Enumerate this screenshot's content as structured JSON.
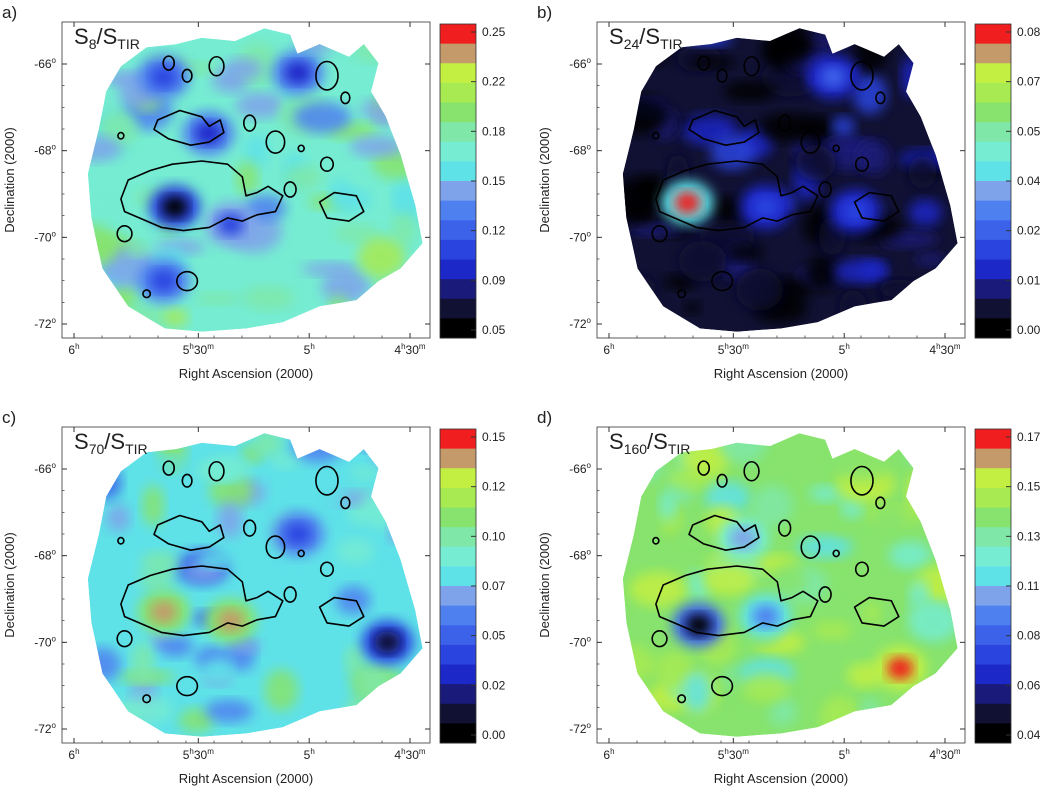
{
  "chart_data": [
    {
      "type": "heatmap",
      "panel": "a)",
      "title_main": "S",
      "title_sub": "8",
      "title_sep": "/S",
      "title_den": "TIR",
      "xlabel": "Right Ascension (2000)",
      "ylabel": "Declination (2000)",
      "x_ticks": [
        {
          "main": "6",
          "unit": "h",
          "extra": ""
        },
        {
          "main": "5",
          "unit": "h",
          "extra": "30",
          "extra_unit": "m"
        },
        {
          "main": "5",
          "unit": "h",
          "extra": ""
        },
        {
          "main": "4",
          "unit": "h",
          "extra": "30",
          "extra_unit": "m"
        }
      ],
      "y_ticks": [
        "-66",
        "-68",
        "-70",
        "-72"
      ],
      "colorbar_ticks": [
        "0.25",
        "0.22",
        "0.18",
        "0.15",
        "0.12",
        "0.09",
        "0.05"
      ],
      "colorbar_range": [
        0.05,
        0.25
      ],
      "background_color": "#8fe36a",
      "background_level": 0.17,
      "blobs": [
        {
          "ra": 5.55,
          "dec": -69.3,
          "level": 0.05
        },
        {
          "ra": 5.4,
          "dec": -67.6,
          "level": 0.09
        },
        {
          "ra": 5.0,
          "dec": -66.2,
          "level": 0.09
        },
        {
          "ra": 5.6,
          "dec": -66.3,
          "level": 0.1
        },
        {
          "ra": 5.3,
          "dec": -69.7,
          "level": 0.11
        },
        {
          "ra": 5.6,
          "dec": -71.0,
          "level": 0.1
        }
      ]
    },
    {
      "type": "heatmap",
      "panel": "b)",
      "title_main": "S",
      "title_sub": "24",
      "title_sep": "/S",
      "title_den": "TIR",
      "xlabel": "Right Ascension (2000)",
      "ylabel": "Declination (2000)",
      "x_ticks": [
        {
          "main": "6",
          "unit": "h",
          "extra": ""
        },
        {
          "main": "5",
          "unit": "h",
          "extra": "30",
          "extra_unit": "m"
        },
        {
          "main": "5",
          "unit": "h",
          "extra": ""
        },
        {
          "main": "4",
          "unit": "h",
          "extra": "30",
          "extra_unit": "m"
        }
      ],
      "y_ticks": [
        "-66",
        "-68",
        "-70",
        "-72"
      ],
      "colorbar_ticks": [
        "0.08",
        "0.07",
        "0.05",
        "0.04",
        "0.02",
        "0.01",
        "0.00"
      ],
      "colorbar_range": [
        0.0,
        0.08
      ],
      "background_color": "#1a2bd6",
      "background_level": 0.008,
      "blobs": [
        {
          "ra": 5.65,
          "dec": -69.2,
          "level": 0.075
        },
        {
          "ra": 5.3,
          "dec": -69.3,
          "level": 0.022
        },
        {
          "ra": 5.0,
          "dec": -66.3,
          "level": 0.025
        },
        {
          "ra": 4.9,
          "dec": -69.4,
          "level": 0.022
        }
      ]
    },
    {
      "type": "heatmap",
      "panel": "c)",
      "title_main": "S",
      "title_sub": "70",
      "title_sep": "/S",
      "title_den": "TIR",
      "xlabel": "Right Ascension (2000)",
      "ylabel": "Declination (2000)",
      "x_ticks": [
        {
          "main": "6",
          "unit": "h",
          "extra": ""
        },
        {
          "main": "5",
          "unit": "h",
          "extra": "30",
          "extra_unit": "m"
        },
        {
          "main": "5",
          "unit": "h",
          "extra": ""
        },
        {
          "main": "4",
          "unit": "h",
          "extra": "30",
          "extra_unit": "m"
        }
      ],
      "y_ticks": [
        "-66",
        "-68",
        "-70",
        "-72"
      ],
      "colorbar_ticks": [
        "0.15",
        "0.12",
        "0.10",
        "0.07",
        "0.05",
        "0.02",
        "0.00"
      ],
      "colorbar_range": [
        0.0,
        0.15
      ],
      "background_color": "#7fdc6a",
      "background_level": 0.08,
      "blobs": [
        {
          "ra": 5.6,
          "dec": -69.3,
          "level": 0.14
        },
        {
          "ra": 5.3,
          "dec": -69.5,
          "level": 0.14
        },
        {
          "ra": 5.0,
          "dec": -67.5,
          "level": 0.04
        },
        {
          "ra": 4.6,
          "dec": -70.0,
          "level": 0.01
        }
      ]
    },
    {
      "type": "heatmap",
      "panel": "d)",
      "title_main": "S",
      "title_sub": "160",
      "title_sep": "/S",
      "title_den": "TIR",
      "xlabel": "Right Ascension (2000)",
      "ylabel": "Declination (2000)",
      "x_ticks": [
        {
          "main": "6",
          "unit": "h",
          "extra": ""
        },
        {
          "main": "5",
          "unit": "h",
          "extra": "30",
          "extra_unit": "m"
        },
        {
          "main": "5",
          "unit": "h",
          "extra": ""
        },
        {
          "main": "4",
          "unit": "h",
          "extra": "30",
          "extra_unit": "m"
        }
      ],
      "y_ticks": [
        "-66",
        "-68",
        "-70",
        "-72"
      ],
      "colorbar_ticks": [
        "0.17",
        "0.15",
        "0.13",
        "0.11",
        "0.08",
        "0.06",
        "0.04"
      ],
      "colorbar_range": [
        0.04,
        0.17
      ],
      "background_color": "#b8ee4a",
      "background_level": 0.13,
      "blobs": [
        {
          "ra": 5.6,
          "dec": -69.6,
          "level": 0.045
        },
        {
          "ra": 4.7,
          "dec": -70.6,
          "level": 0.17
        },
        {
          "ra": 5.3,
          "dec": -69.4,
          "level": 0.09
        },
        {
          "ra": 5.4,
          "dec": -67.6,
          "level": 0.1
        }
      ]
    }
  ]
}
